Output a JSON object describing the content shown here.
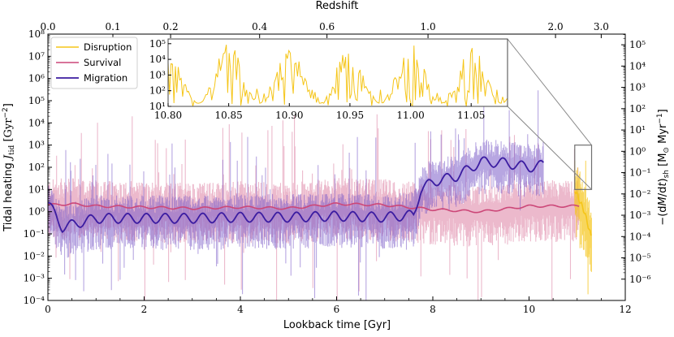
{
  "chart_data": {
    "type": "line",
    "xlabel": "Lookback time [Gyr]",
    "ylabel_left": "Tidal heating J_tid [Gyr^-2]",
    "ylabel_right": "-(dM/dt)_sh [M_sun Myr^-1]",
    "top_label": "Redshift",
    "xlim": [
      0,
      12
    ],
    "ylim_left_log10": [
      -4,
      8
    ],
    "ylim_right_log10": [
      -7,
      5.5
    ],
    "x_ticks": [
      "0",
      "2",
      "4",
      "6",
      "8",
      "10",
      "12"
    ],
    "x_tick_values": [
      0,
      2,
      4,
      6,
      8,
      10,
      12
    ],
    "y_left_ticks": [
      "10⁻⁴",
      "10⁻³",
      "10⁻²",
      "10⁻¹",
      "10⁰",
      "10¹",
      "10²",
      "10³",
      "10⁴",
      "10⁵",
      "10⁶",
      "10⁷",
      "10⁸"
    ],
    "y_left_tick_values": [
      -4,
      -3,
      -2,
      -1,
      0,
      1,
      2,
      3,
      4,
      5,
      6,
      7,
      8
    ],
    "y_right_ticks": [
      "10⁻⁶",
      "10⁻⁵",
      "10⁻⁴",
      "10⁻³",
      "10⁻²",
      "10⁻¹",
      "10⁰",
      "10¹",
      "10²",
      "10³",
      "10⁴",
      "10⁵"
    ],
    "y_right_tick_values": [
      -6,
      -5,
      -4,
      -3,
      -2,
      -1,
      0,
      1,
      2,
      3,
      4,
      5
    ],
    "redshift_ticks": [
      "0.0",
      "0.1",
      "0.2",
      "0.4",
      "0.6",
      "1.0",
      "2.0",
      "3.0"
    ],
    "redshift_tick_lookback_gyr": [
      0,
      1.35,
      2.55,
      4.4,
      5.8,
      7.9,
      10.55,
      11.5
    ],
    "legend": [
      "Disruption",
      "Survival",
      "Migration"
    ],
    "series": [
      {
        "name": "Disruption",
        "color": "#f5c518",
        "x_range": [
          10.95,
          11.3
        ],
        "smooth_log10_left": [
          [
            10.95,
            1.0
          ],
          [
            11.05,
            0.5
          ],
          [
            11.15,
            0.0
          ],
          [
            11.25,
            -0.8
          ],
          [
            11.3,
            -1.2
          ]
        ]
      },
      {
        "name": "Survival",
        "color": "#cc4778",
        "x_range": [
          0,
          11.05
        ],
        "smooth_log10_left": [
          [
            0,
            0.3
          ],
          [
            0.5,
            0.35
          ],
          [
            1,
            0.25
          ],
          [
            2,
            0.2
          ],
          [
            3,
            0.15
          ],
          [
            4,
            0.2
          ],
          [
            5,
            0.15
          ],
          [
            6,
            0.35
          ],
          [
            7,
            0.3
          ],
          [
            8,
            0.1
          ],
          [
            9,
            0.0
          ],
          [
            10,
            0.25
          ],
          [
            11,
            0.25
          ]
        ]
      },
      {
        "name": "Migration",
        "color": "#3b1ca1",
        "x_range": [
          0,
          10.3
        ],
        "smooth_log10_left": [
          [
            0,
            0.4
          ],
          [
            0.3,
            -0.7
          ],
          [
            1,
            -0.3
          ],
          [
            2,
            -0.3
          ],
          [
            3,
            -0.3
          ],
          [
            4,
            -0.25
          ],
          [
            5,
            -0.25
          ],
          [
            6,
            -0.2
          ],
          [
            7,
            -0.25
          ],
          [
            7.6,
            -0.15
          ],
          [
            7.75,
            1.0
          ],
          [
            8,
            1.35
          ],
          [
            8.5,
            1.6
          ],
          [
            9,
            2.25
          ],
          [
            9.5,
            2.2
          ],
          [
            10,
            2.0
          ],
          [
            10.3,
            2.1
          ]
        ]
      }
    ],
    "inset": {
      "series": "Disruption",
      "xlim": [
        10.8,
        11.08
      ],
      "ylim_log10": [
        1,
        5.3
      ],
      "x_ticks": [
        "10.80",
        "10.85",
        "10.90",
        "10.95",
        "11.00",
        "11.05"
      ],
      "x_tick_values": [
        10.8,
        10.85,
        10.9,
        10.95,
        11.0,
        11.05
      ],
      "y_ticks": [
        "10¹",
        "10²",
        "10³",
        "10⁴",
        "10⁵"
      ],
      "y_tick_values": [
        1,
        2,
        3,
        4,
        5
      ],
      "zoom_box_x": [
        10.95,
        11.3
      ],
      "zoom_box_log10_left": [
        1,
        3
      ]
    }
  }
}
